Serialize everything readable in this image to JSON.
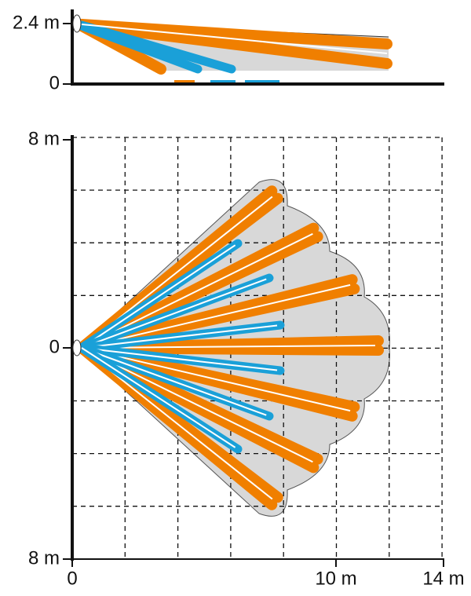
{
  "side_view": {
    "y_labels": [
      "2.4 m",
      "0"
    ]
  },
  "top_view": {
    "y_labels": [
      "8 m",
      "0",
      "8 m"
    ],
    "x_labels": [
      "0",
      "10 m",
      "14 m"
    ]
  }
}
